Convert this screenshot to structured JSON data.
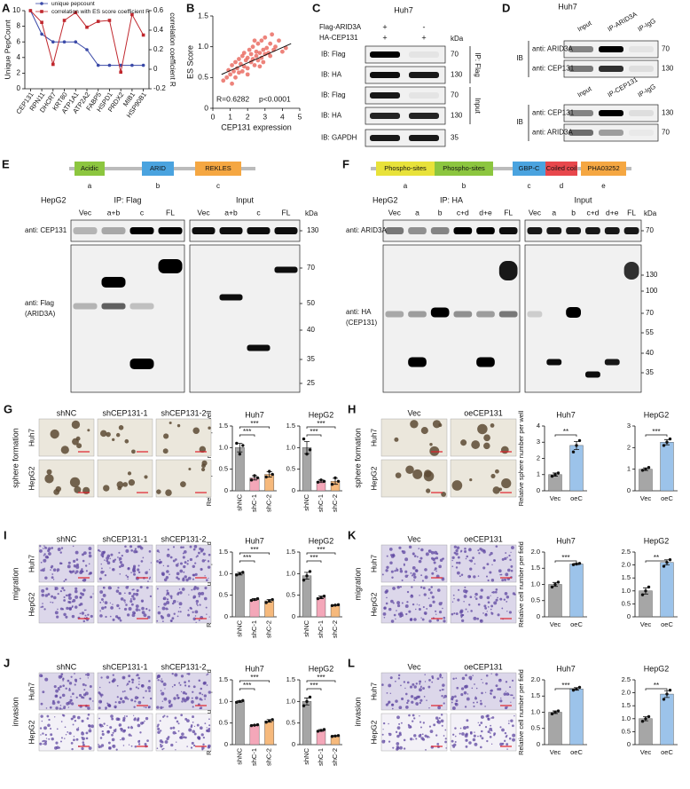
{
  "chart_data": [
    {
      "type": "line",
      "panel": "A",
      "categories": [
        "CEP131",
        "RPN11",
        "DHCR7",
        "KRT80",
        "ATP1A1",
        "ATP2A2",
        "FABP5",
        "HSPD1",
        "PRDX2",
        "MIB1",
        "HSP90B1"
      ],
      "ylabel": "Unique PepCount",
      "y2label": "correlation coefficient R",
      "ylim": [
        0,
        10
      ],
      "yticks": [
        0,
        2,
        4,
        6,
        8,
        10
      ],
      "y2lim": [
        -0.2,
        0.6
      ],
      "y2ticks": [
        -0.2,
        0,
        0.2,
        0.4,
        0.6
      ],
      "series": [
        {
          "name": "unique pepcount",
          "color": "#3b4aa8",
          "values": [
            10,
            7,
            6,
            6,
            6,
            5,
            3,
            3,
            3,
            3,
            3
          ]
        },
        {
          "name": "correlation with ES score coefficient R",
          "color": "#c0272d",
          "axis": "y2",
          "values": [
            0.6,
            0.48,
            0.05,
            0.5,
            0.58,
            0.43,
            0.49,
            0.5,
            -0.03,
            0.56,
            0.35
          ]
        }
      ]
    },
    {
      "type": "scatter",
      "panel": "B",
      "xlabel": "CEP131 expression",
      "ylabel": "ES Score",
      "xlim": [
        0,
        5
      ],
      "xticks": [
        0,
        1,
        2,
        3,
        4,
        5
      ],
      "ylim": [
        0,
        1.5
      ],
      "yticks": [
        0,
        0.5,
        {
          "value": 1,
          "label": "1.0"
        },
        1.5
      ],
      "color": "#e8645a",
      "annotations": [
        "R=0.6282",
        "p<0.0001"
      ],
      "x": [
        0.6,
        0.8,
        0.9,
        1.0,
        1.1,
        1.2,
        1.3,
        1.4,
        1.5,
        1.5,
        1.6,
        1.7,
        1.8,
        1.8,
        1.9,
        2.0,
        2.0,
        2.1,
        2.2,
        2.2,
        2.3,
        2.3,
        2.4,
        2.5,
        2.5,
        2.6,
        2.6,
        2.7,
        2.8,
        2.8,
        2.9,
        3.0,
        3.0,
        3.1,
        3.2,
        3.3,
        3.4,
        3.5,
        3.6,
        3.8,
        4.0,
        4.2,
        1.3,
        1.7,
        2.4,
        2.9,
        3.3,
        2.0,
        1.1,
        2.7
      ],
      "y": [
        0.45,
        0.5,
        0.62,
        0.55,
        0.7,
        0.6,
        0.75,
        0.65,
        0.8,
        0.58,
        0.72,
        0.85,
        0.68,
        0.9,
        0.78,
        0.82,
        0.65,
        0.95,
        0.75,
        0.88,
        0.8,
        1.0,
        0.7,
        0.92,
        0.85,
        0.78,
        1.05,
        0.9,
        0.82,
        1.1,
        0.95,
        0.88,
        1.15,
        0.98,
        0.9,
        1.05,
        1.2,
        0.95,
        1.0,
        1.1,
        0.92,
        0.98,
        0.5,
        0.6,
        1.1,
        0.75,
        0.85,
        0.55,
        0.4,
        0.68
      ],
      "trendline": {
        "x": [
          0.5,
          4.5
        ],
        "y": [
          0.55,
          1.05
        ]
      }
    },
    {
      "type": "bar",
      "title": "Huh7",
      "ylabel": "Relative sphere number per well",
      "categories": [
        "shNC",
        "shC-1",
        "shC-2"
      ],
      "colors": [
        "#a6a6a6",
        "#f4a7b9",
        "#f6b97c"
      ],
      "values": [
        1.0,
        0.3,
        0.38
      ],
      "errors": [
        0.1,
        0.05,
        0.06
      ],
      "points": [
        [
          1.1,
          0.85,
          1.05
        ],
        [
          0.25,
          0.35,
          0.3
        ],
        [
          0.32,
          0.45,
          0.38
        ]
      ],
      "ylim": [
        0,
        1.5
      ],
      "yticks": [
        0,
        0.5,
        {
          "value": 1,
          "label": "1.0"
        },
        1.5
      ],
      "significance": [
        {
          "from": 0,
          "to": 1,
          "label": "***"
        },
        {
          "from": 0,
          "to": 2,
          "label": "***"
        }
      ]
    },
    {
      "type": "bar",
      "title": "HepG2",
      "categories": [
        "shNC",
        "shC-1",
        "shC-2"
      ],
      "colors": [
        "#a6a6a6",
        "#f4a7b9",
        "#f6b97c"
      ],
      "values": [
        1.0,
        0.22,
        0.22
      ],
      "errors": [
        0.14,
        0.03,
        0.07
      ],
      "points": [
        [
          1.2,
          0.85,
          0.95
        ],
        [
          0.2,
          0.25,
          0.22
        ],
        [
          0.15,
          0.3,
          0.22
        ]
      ],
      "ylim": [
        0,
        1.5
      ],
      "yticks": [
        0,
        0.5,
        {
          "value": 1,
          "label": "1.0"
        },
        1.5
      ],
      "significance": [
        {
          "from": 0,
          "to": 1,
          "label": "***"
        },
        {
          "from": 0,
          "to": 2,
          "label": "***"
        }
      ]
    },
    {
      "type": "bar",
      "title": "Huh7",
      "ylabel": "Relative sphere number per well",
      "categories": [
        "Vec",
        "oeC"
      ],
      "colors": [
        "#a6a6a6",
        "#9cc3ea"
      ],
      "values": [
        1.0,
        2.8
      ],
      "errors": [
        0.1,
        0.25
      ],
      "points": [
        [
          0.9,
          1.0,
          1.1
        ],
        [
          2.4,
          2.8,
          3.1
        ]
      ],
      "ylim": [
        0,
        4
      ],
      "yticks": [
        0,
        1,
        2,
        3,
        4
      ],
      "significance": [
        {
          "from": 0,
          "to": 1,
          "label": "**"
        }
      ]
    },
    {
      "type": "bar",
      "title": "HepG2",
      "categories": [
        "Vec",
        "oeC"
      ],
      "colors": [
        "#a6a6a6",
        "#9cc3ea"
      ],
      "values": [
        1.0,
        2.25
      ],
      "errors": [
        0.06,
        0.12
      ],
      "points": [
        [
          0.95,
          1.0,
          1.08
        ],
        [
          2.1,
          2.25,
          2.4
        ]
      ],
      "ylim": [
        0,
        3
      ],
      "yticks": [
        0,
        1,
        2,
        3
      ],
      "significance": [
        {
          "from": 0,
          "to": 1,
          "label": "***"
        }
      ]
    },
    {
      "type": "bar",
      "title": "Huh7",
      "ylabel": "Relative cell number per field",
      "categories": [
        "shNC",
        "shC-1",
        "shC-2"
      ],
      "colors": [
        "#a6a6a6",
        "#f4a7b9",
        "#f6b97c"
      ],
      "values": [
        1.0,
        0.4,
        0.37
      ],
      "errors": [
        0.03,
        0.02,
        0.03
      ],
      "points": [
        [
          0.97,
          1.0,
          1.03
        ],
        [
          0.38,
          0.4,
          0.42
        ],
        [
          0.33,
          0.37,
          0.4
        ]
      ],
      "ylim": [
        0,
        1.5
      ],
      "yticks": [
        0,
        0.5,
        {
          "value": 1,
          "label": "1.0"
        },
        1.5
      ],
      "significance": [
        {
          "from": 0,
          "to": 1,
          "label": "***"
        },
        {
          "from": 0,
          "to": 2,
          "label": "***"
        }
      ]
    },
    {
      "type": "bar",
      "title": "HepG2",
      "categories": [
        "shNC",
        "shC-1",
        "shC-2"
      ],
      "colors": [
        "#a6a6a6",
        "#f4a7b9",
        "#f6b97c"
      ],
      "values": [
        0.95,
        0.45,
        0.27
      ],
      "errors": [
        0.08,
        0.03,
        0.01
      ],
      "points": [
        [
          0.85,
          0.95,
          1.05
        ],
        [
          0.42,
          0.45,
          0.48
        ],
        [
          0.26,
          0.27,
          0.28
        ]
      ],
      "ylim": [
        0,
        1.5
      ],
      "yticks": [
        0,
        0.5,
        {
          "value": 1,
          "label": "1.0"
        },
        1.5
      ],
      "significance": [
        {
          "from": 0,
          "to": 1,
          "label": "***"
        },
        {
          "from": 0,
          "to": 2,
          "label": "***"
        }
      ]
    },
    {
      "type": "bar",
      "title": "Huh7",
      "ylabel": "Relative cell number per field",
      "categories": [
        "Vec",
        "oeC"
      ],
      "colors": [
        "#a6a6a6",
        "#9cc3ea"
      ],
      "values": [
        1.0,
        1.63
      ],
      "errors": [
        0.06,
        0.02
      ],
      "points": [
        [
          0.92,
          1.0,
          1.07
        ],
        [
          1.61,
          1.63,
          1.65
        ]
      ],
      "ylim": [
        0,
        2
      ],
      "yticks": [
        0,
        0.5,
        {
          "value": 1,
          "label": "1.0"
        },
        1.5,
        {
          "value": 2,
          "label": "2.0"
        }
      ],
      "significance": [
        {
          "from": 0,
          "to": 1,
          "label": "***"
        }
      ]
    },
    {
      "type": "bar",
      "title": "HepG2",
      "categories": [
        "Vec",
        "oeC"
      ],
      "colors": [
        "#a6a6a6",
        "#9cc3ea"
      ],
      "values": [
        1.0,
        2.1
      ],
      "errors": [
        0.12,
        0.1
      ],
      "points": [
        [
          0.85,
          1.0,
          1.15
        ],
        [
          1.95,
          2.1,
          2.2
        ]
      ],
      "ylim": [
        0,
        2.5
      ],
      "yticks": [
        0,
        0.5,
        {
          "value": 1,
          "label": "1.0"
        },
        1.5,
        {
          "value": 2,
          "label": "2.0"
        },
        2.5
      ],
      "significance": [
        {
          "from": 0,
          "to": 1,
          "label": "**"
        }
      ]
    },
    {
      "type": "bar",
      "title": "Huh7",
      "ylabel": "Relative cell number per field",
      "categories": [
        "shNC",
        "shC-1",
        "shC-2"
      ],
      "colors": [
        "#a6a6a6",
        "#f4a7b9",
        "#f6b97c"
      ],
      "values": [
        1.0,
        0.45,
        0.55
      ],
      "errors": [
        0.02,
        0.01,
        0.03
      ],
      "points": [
        [
          0.98,
          1.0,
          1.02
        ],
        [
          0.44,
          0.45,
          0.46
        ],
        [
          0.52,
          0.55,
          0.58
        ]
      ],
      "ylim": [
        0,
        1.5
      ],
      "yticks": [
        0,
        0.5,
        {
          "value": 1,
          "label": "1.0"
        },
        1.5
      ],
      "significance": [
        {
          "from": 0,
          "to": 1,
          "label": "***"
        },
        {
          "from": 0,
          "to": 2,
          "label": "***"
        }
      ]
    },
    {
      "type": "bar",
      "title": "HepG2",
      "categories": [
        "shNC",
        "shC-1",
        "shC-2"
      ],
      "colors": [
        "#a6a6a6",
        "#f4a7b9",
        "#f6b97c"
      ],
      "values": [
        1.0,
        0.33,
        0.2
      ],
      "errors": [
        0.08,
        0.02,
        0.01
      ],
      "points": [
        [
          0.9,
          1.0,
          1.1
        ],
        [
          0.31,
          0.33,
          0.35
        ],
        [
          0.19,
          0.2,
          0.21
        ]
      ],
      "ylim": [
        0,
        1.5
      ],
      "yticks": [
        0,
        0.5,
        {
          "value": 1,
          "label": "1.0"
        },
        1.5
      ],
      "significance": [
        {
          "from": 0,
          "to": 1,
          "label": "***"
        },
        {
          "from": 0,
          "to": 2,
          "label": "***"
        }
      ]
    },
    {
      "type": "bar",
      "title": "Huh7",
      "ylabel": "Relative cell number per field",
      "categories": [
        "Vec",
        "oeC"
      ],
      "colors": [
        "#a6a6a6",
        "#9cc3ea"
      ],
      "values": [
        1.0,
        1.72
      ],
      "errors": [
        0.04,
        0.04
      ],
      "points": [
        [
          0.95,
          1.0,
          1.04
        ],
        [
          1.68,
          1.72,
          1.77
        ]
      ],
      "ylim": [
        0,
        2
      ],
      "yticks": [
        0,
        0.5,
        {
          "value": 1,
          "label": "1.0"
        },
        1.5,
        {
          "value": 2,
          "label": "2.0"
        }
      ],
      "significance": [
        {
          "from": 0,
          "to": 1,
          "label": "***"
        }
      ]
    },
    {
      "type": "bar",
      "title": "HepG2",
      "categories": [
        "Vec",
        "oeC"
      ],
      "colors": [
        "#a6a6a6",
        "#9cc3ea"
      ],
      "values": [
        1.0,
        1.95
      ],
      "errors": [
        0.08,
        0.13
      ],
      "points": [
        [
          0.9,
          1.0,
          1.08
        ],
        [
          1.75,
          1.95,
          2.1
        ]
      ],
      "ylim": [
        0,
        2.5
      ],
      "yticks": [
        0,
        0.5,
        {
          "value": 1,
          "label": "1.0"
        },
        1.5,
        {
          "value": 2,
          "label": "2.0"
        },
        2.5
      ],
      "significance": [
        {
          "from": 0,
          "to": 1,
          "label": "**"
        }
      ]
    }
  ],
  "blots": [
    {
      "panel": "C",
      "cell": "Huh7",
      "conditions": [
        {
          "name": "Flag-ARID3A",
          "marks": [
            "+",
            "-"
          ]
        },
        {
          "name": "HA-CEP131",
          "marks": [
            "+",
            "+"
          ]
        }
      ],
      "kda_label": "kDa",
      "rows": [
        {
          "name": "IB: Flag",
          "kda": 70
        },
        {
          "name": "IB: HA",
          "kda": 130
        },
        {
          "name": "IB: Flag",
          "kda": 70
        },
        {
          "name": "IB: HA",
          "kda": 130
        },
        {
          "name": "IB: GAPDH",
          "kda": 35
        }
      ],
      "groups": [
        "IP: Flag",
        "Input"
      ]
    },
    {
      "panel": "D",
      "cell": "Huh7",
      "sections": [
        {
          "ib_label": "IB",
          "lanes": [
            "Input",
            "IP-ARID3A",
            "IP-IgG"
          ],
          "rows": [
            {
              "name": "anti: ARID3A",
              "kda": 70
            },
            {
              "name": "anti: CEP131",
              "kda": 130
            }
          ]
        },
        {
          "ib_label": "IB",
          "lanes": [
            "Input",
            "IP-CEP131",
            "IP-IgG"
          ],
          "rows": [
            {
              "name": "anti: CEP131",
              "kda": 130
            },
            {
              "name": "anti: ARID3A",
              "kda": 70
            }
          ]
        }
      ]
    },
    {
      "panel": "E",
      "domains": [
        {
          "name": "Acidic",
          "fragment": "a",
          "color": "#8cc63f"
        },
        {
          "name": "ARID",
          "fragment": "b",
          "color": "#4aa3df"
        },
        {
          "name": "REKLES",
          "fragment": "c",
          "color": "#f5a742"
        }
      ],
      "cell": "HepG2",
      "kda_label": "kDa",
      "groups": [
        {
          "name": "IP: Flag",
          "lanes": [
            "Vec",
            "a+b",
            "c",
            "FL"
          ]
        },
        {
          "name": "Input",
          "lanes": [
            "Vec",
            "a+b",
            "c",
            "FL"
          ]
        }
      ],
      "rows": [
        {
          "name": [
            "anti: CEP131"
          ],
          "kda": [
            130
          ]
        },
        {
          "name": [
            "anti: Flag",
            "(ARID3A)"
          ],
          "kda": [
            70,
            50,
            40,
            35,
            25
          ]
        }
      ]
    },
    {
      "panel": "F",
      "domains": [
        {
          "name": "Phospho-sites",
          "fragment": "a",
          "color": "#e8e23a"
        },
        {
          "name": "Phospho-sites",
          "fragment": "b",
          "color": "#8cc63f"
        },
        {
          "name": "GBP-C",
          "fragment": "c",
          "color": "#4aa3df"
        },
        {
          "name": "Coiled coil",
          "fragment": "d",
          "color": "#e8474c"
        },
        {
          "name": "PHA03252",
          "fragment": "e",
          "color": "#f5a742"
        }
      ],
      "cell": "HepG2",
      "kda_label": "kDa",
      "groups": [
        {
          "name": "IP: HA",
          "lanes": [
            "Vec",
            "a",
            "b",
            "c+d",
            "d+e",
            "FL"
          ]
        },
        {
          "name": "Input",
          "lanes": [
            "Vec",
            "a",
            "b",
            "c+d",
            "d+e",
            "FL"
          ]
        }
      ],
      "rows": [
        {
          "name": [
            "anti: ARID3A"
          ],
          "kda": [
            70
          ]
        },
        {
          "name": [
            "anti: HA",
            "(CEP131)"
          ],
          "kda": [
            130,
            100,
            70,
            55,
            40,
            35
          ]
        }
      ]
    }
  ],
  "micrographs": [
    {
      "panel": "G",
      "assay": "sphere formation",
      "columns": [
        "shNC",
        "shCEP131-1",
        "shCEP131-2"
      ],
      "rows": [
        "Huh7",
        "HepG2"
      ]
    },
    {
      "panel": "H",
      "assay": "sphere formation",
      "columns": [
        "Vec",
        "oeCEP131"
      ],
      "rows": [
        "Huh7",
        "HepG2"
      ]
    },
    {
      "panel": "I",
      "assay": "migration",
      "columns": [
        "shNC",
        "shCEP131-1",
        "shCEP131-2"
      ],
      "rows": [
        "Huh7",
        "HepG2"
      ]
    },
    {
      "panel": "K",
      "assay": "migration",
      "columns": [
        "Vec",
        "oeCEP131"
      ],
      "rows": [
        "Huh7",
        "HepG2"
      ]
    },
    {
      "panel": "J",
      "assay": "invasion",
      "columns": [
        "shNC",
        "shCEP131-1",
        "shCEP131-2"
      ],
      "rows": [
        "Huh7",
        "HepG2"
      ]
    },
    {
      "panel": "L",
      "assay": "invasion",
      "columns": [
        "Vec",
        "oeCEP131"
      ],
      "rows": [
        "Huh7",
        "HepG2"
      ]
    }
  ]
}
